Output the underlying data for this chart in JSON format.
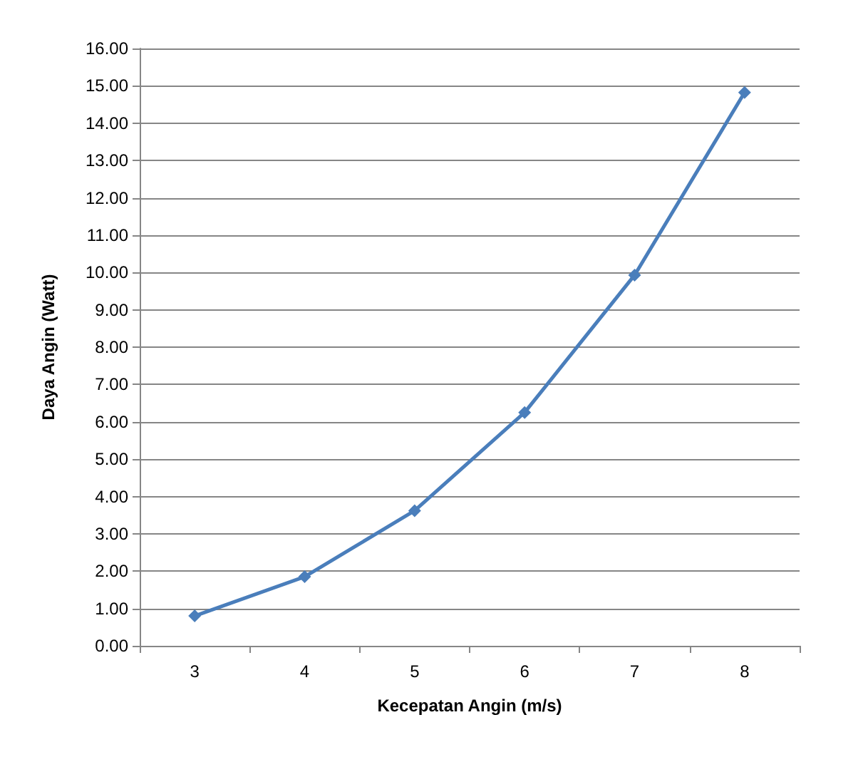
{
  "chart_data": {
    "type": "line",
    "xlabel": "Kecepatan Angin (m/s)",
    "ylabel": "Daya Angin (Watt)",
    "categories": [
      "3",
      "4",
      "5",
      "6",
      "7",
      "8"
    ],
    "series": [
      {
        "color": "#4a7ebb",
        "values": [
          0.8,
          1.85,
          3.62,
          6.25,
          9.93,
          14.82
        ]
      }
    ],
    "ylim": [
      0,
      16
    ],
    "yticks": [
      {
        "value": 0,
        "label": "0.00"
      },
      {
        "value": 1,
        "label": "1.00"
      },
      {
        "value": 2,
        "label": "2.00"
      },
      {
        "value": 3,
        "label": "3.00"
      },
      {
        "value": 4,
        "label": "4.00"
      },
      {
        "value": 5,
        "label": "5.00"
      },
      {
        "value": 6,
        "label": "6.00"
      },
      {
        "value": 7,
        "label": "7.00"
      },
      {
        "value": 8,
        "label": "8.00"
      },
      {
        "value": 9,
        "label": "9.00"
      },
      {
        "value": 10,
        "label": "10.00"
      },
      {
        "value": 11,
        "label": "11.00"
      },
      {
        "value": 12,
        "label": "12.00"
      },
      {
        "value": 13,
        "label": "13.00"
      },
      {
        "value": 14,
        "label": "14.00"
      },
      {
        "value": 15,
        "label": "15.00"
      },
      {
        "value": 16,
        "label": "16.00"
      }
    ],
    "grid": "y",
    "marker": "diamond",
    "line_style": "solid"
  }
}
